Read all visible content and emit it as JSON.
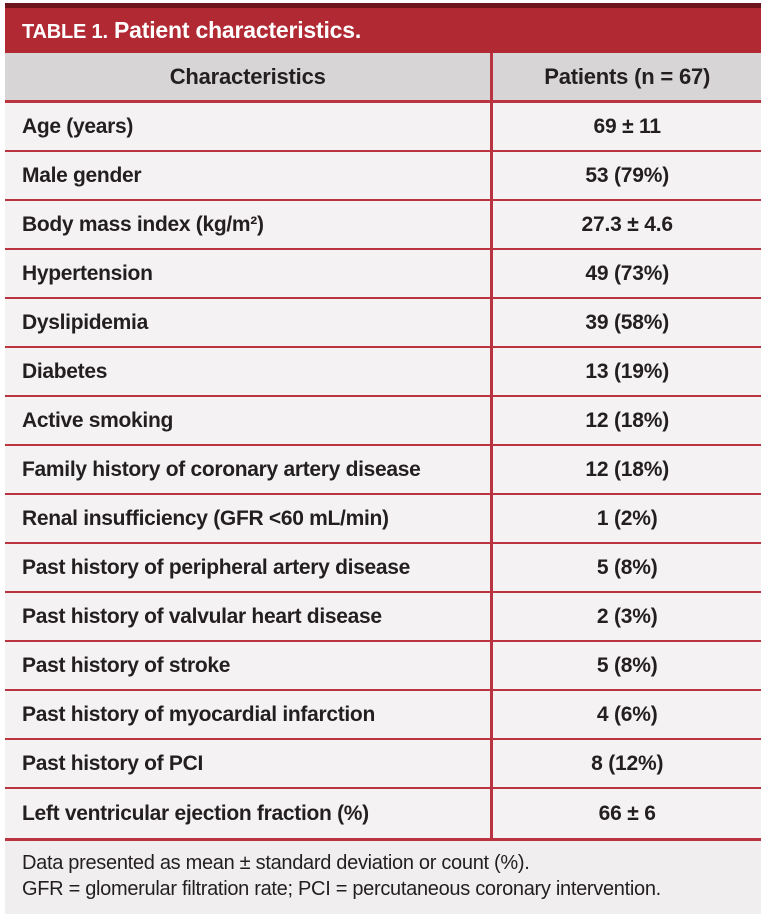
{
  "title": {
    "label": "TABLE 1.",
    "text": " Patient characteristics."
  },
  "table": {
    "col1_header": "Characteristics",
    "col2_header": "Patients (n = 67)",
    "rows": [
      {
        "label": "Age (years)",
        "value": "69 ± 11"
      },
      {
        "label": "Male gender",
        "value": "53 (79%)"
      },
      {
        "label": "Body mass index (kg/m²)",
        "value": "27.3 ± 4.6"
      },
      {
        "label": "Hypertension",
        "value": "49 (73%)"
      },
      {
        "label": "Dyslipidemia",
        "value": "39 (58%)"
      },
      {
        "label": "Diabetes",
        "value": "13 (19%)"
      },
      {
        "label": "Active smoking",
        "value": "12 (18%)"
      },
      {
        "label": "Family history of coronary artery disease",
        "value": "12 (18%)"
      },
      {
        "label": "Renal insufficiency (GFR <60 mL/min)",
        "value": "1 (2%)"
      },
      {
        "label": "Past history of peripheral artery disease",
        "value": "5 (8%)"
      },
      {
        "label": "Past history of valvular heart disease",
        "value": "2 (3%)"
      },
      {
        "label": "Past history of stroke",
        "value": "5 (8%)"
      },
      {
        "label": "Past history of myocardial infarction",
        "value": "4 (6%)"
      },
      {
        "label": "Past history of PCI",
        "value": "8 (12%)"
      },
      {
        "label": "Left ventricular ejection fraction (%)",
        "value": "66 ± 6"
      }
    ]
  },
  "footnotes": [
    "Data presented as mean ± standard deviation or count (%).",
    "GFR = glomerular filtration rate; PCI = percutaneous coronary intervention."
  ],
  "colors": {
    "title_bar": "#b12a33",
    "title_bar_top_edge": "#6e141c",
    "rule_red": "#b93440",
    "header_bg": "#d7d5d6",
    "row_bg": "#f4f2f2",
    "footnote_bg": "#f0eeee",
    "text": "#231f20"
  }
}
